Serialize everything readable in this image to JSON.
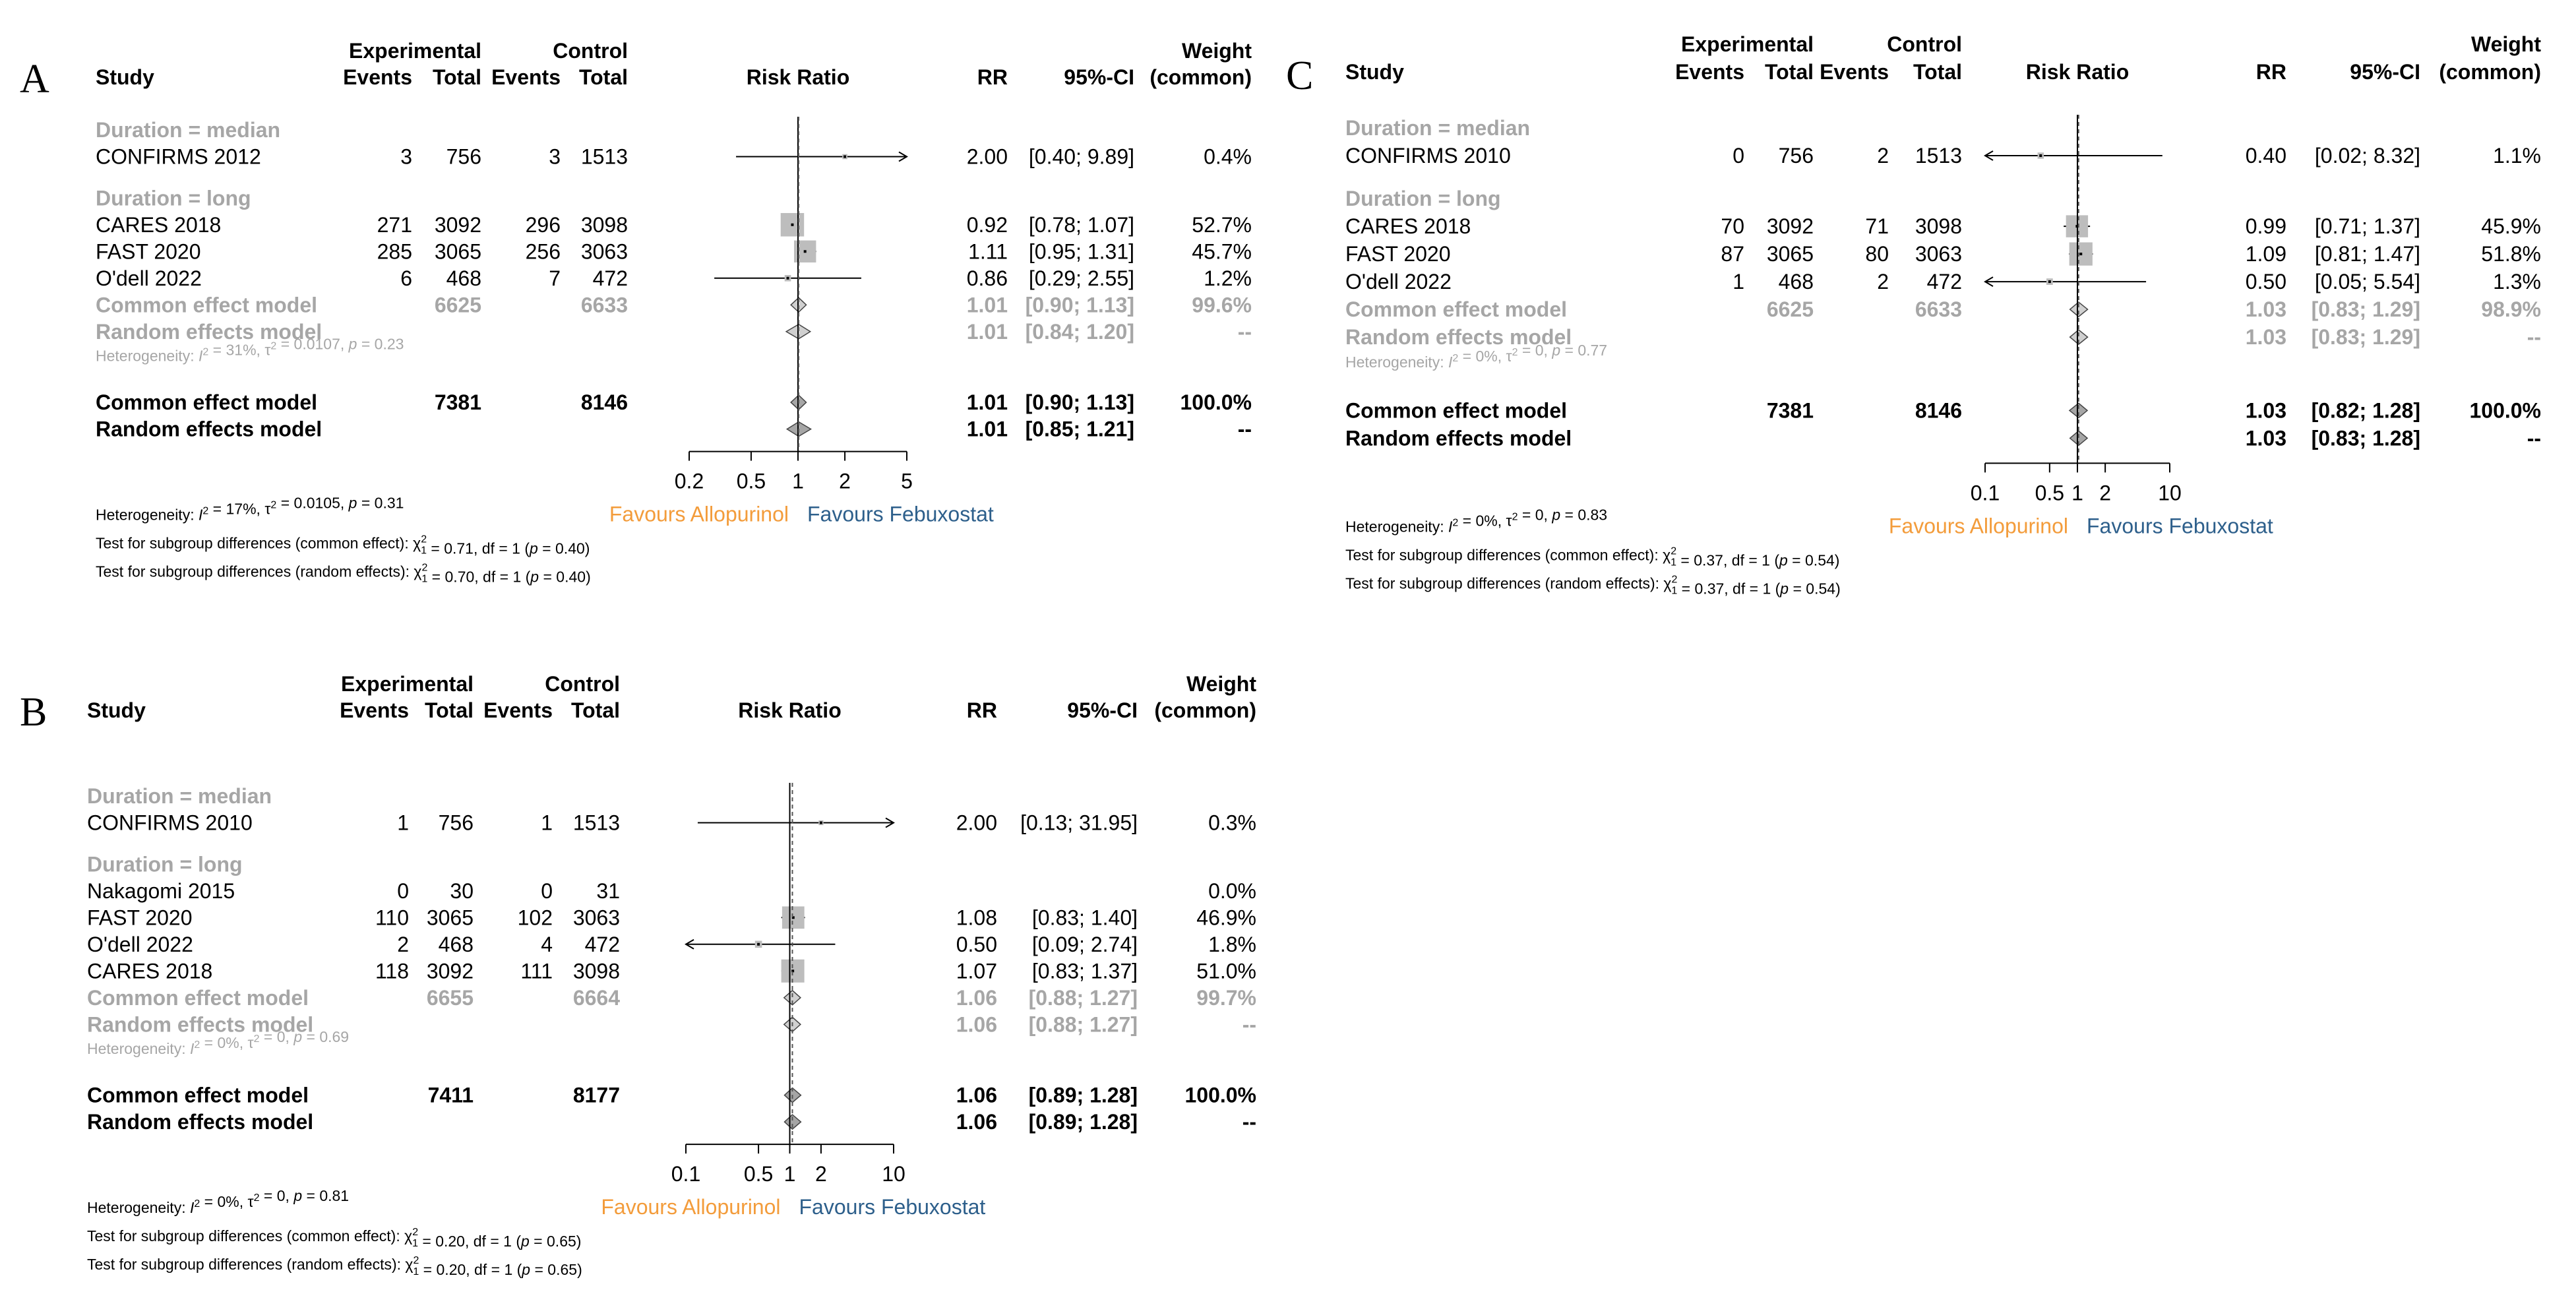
{
  "header_labels": {
    "study": "Study",
    "experimental": "Experimental",
    "control": "Control",
    "events": "Events",
    "total": "Total",
    "risk_ratio": "Risk Ratio",
    "rr": "RR",
    "ci": "95%-CI",
    "weight": "Weight",
    "weight_sub": "(common)"
  },
  "legend": {
    "left": "Favours Allopurinol",
    "right": "Favours Febuxostat",
    "left_color": "#f39c3b",
    "right_color": "#2d5f8b"
  },
  "chart_data": [
    {
      "type": "forest",
      "panel": "A",
      "scale": "log",
      "xticks": [
        0.2,
        0.5,
        1,
        2,
        5
      ],
      "xlim": [
        0.2,
        5
      ],
      "groups": [
        {
          "label": "Duration = median",
          "studies": [
            {
              "study": "CONFIRMS 2012",
              "e_events": "3",
              "e_total": "756",
              "c_events": "3",
              "c_total": "1513",
              "rr": 2.0,
              "lo": 0.4,
              "hi": 9.89,
              "rr_text": "2.00",
              "ci_text": "[0.40; 9.89]",
              "weight": "0.4%"
            }
          ],
          "common": null,
          "random": null,
          "heterogeneity": ""
        },
        {
          "label": "Duration = long",
          "studies": [
            {
              "study": "CARES 2018",
              "e_events": "271",
              "e_total": "3092",
              "c_events": "296",
              "c_total": "3098",
              "rr": 0.92,
              "lo": 0.78,
              "hi": 1.07,
              "rr_text": "0.92",
              "ci_text": "[0.78; 1.07]",
              "weight": "52.7%"
            },
            {
              "study": "FAST 2020",
              "e_events": "285",
              "e_total": "3065",
              "c_events": "256",
              "c_total": "3063",
              "rr": 1.11,
              "lo": 0.95,
              "hi": 1.31,
              "rr_text": "1.11",
              "ci_text": "[0.95; 1.31]",
              "weight": "45.7%"
            },
            {
              "study": "O'dell 2022",
              "e_events": "6",
              "e_total": "468",
              "c_events": "7",
              "c_total": "472",
              "rr": 0.86,
              "lo": 0.29,
              "hi": 2.55,
              "rr_text": "0.86",
              "ci_text": "[0.29; 2.55]",
              "weight": "1.2%"
            }
          ],
          "common": {
            "label": "Common effect model",
            "e_total": "6625",
            "c_total": "6633",
            "rr": 1.01,
            "lo": 0.9,
            "hi": 1.13,
            "rr_text": "1.01",
            "ci_text": "[0.90; 1.13]",
            "weight": "99.6%"
          },
          "random": {
            "label": "Random effects model",
            "rr": 1.01,
            "lo": 0.84,
            "hi": 1.2,
            "rr_text": "1.01",
            "ci_text": "[0.84; 1.20]",
            "weight": "--"
          },
          "heterogeneity": "Heterogeneity: I² = 31%, τ² = 0.0107, p = 0.23"
        }
      ],
      "overall_common": {
        "label": "Common effect model",
        "e_total": "7381",
        "c_total": "8146",
        "rr": 1.01,
        "lo": 0.9,
        "hi": 1.13,
        "rr_text": "1.01",
        "ci_text": "[0.90; 1.13]",
        "weight": "100.0%"
      },
      "overall_random": {
        "label": "Random effects model",
        "rr": 1.01,
        "lo": 0.85,
        "hi": 1.21,
        "rr_text": "1.01",
        "ci_text": "[0.85; 1.21]",
        "weight": "--"
      },
      "footer": [
        "Heterogeneity: I² = 17%, τ² = 0.0105, p = 0.31",
        "Test for subgroup differences (common effect): χ²₁ = 0.71, df = 1 (p = 0.40)",
        "Test for subgroup differences (random effects): χ²₁ = 0.70, df = 1 (p = 0.40)"
      ]
    },
    {
      "type": "forest",
      "panel": "B",
      "scale": "log",
      "xticks": [
        0.1,
        0.5,
        1,
        2,
        10
      ],
      "xlim": [
        0.1,
        10
      ],
      "groups": [
        {
          "label": "Duration = median",
          "studies": [
            {
              "study": "CONFIRMS 2010",
              "e_events": "1",
              "e_total": "756",
              "c_events": "1",
              "c_total": "1513",
              "rr": 2.0,
              "lo": 0.13,
              "hi": 31.95,
              "rr_text": "2.00",
              "ci_text": "[0.13; 31.95]",
              "weight": "0.3%"
            }
          ],
          "common": null,
          "random": null,
          "heterogeneity": ""
        },
        {
          "label": "Duration = long",
          "studies": [
            {
              "study": "Nakagomi 2015",
              "e_events": "0",
              "e_total": "30",
              "c_events": "0",
              "c_total": "31",
              "rr": null,
              "lo": null,
              "hi": null,
              "rr_text": "",
              "ci_text": "",
              "weight": "0.0%"
            },
            {
              "study": "FAST 2020",
              "e_events": "110",
              "e_total": "3065",
              "c_events": "102",
              "c_total": "3063",
              "rr": 1.08,
              "lo": 0.83,
              "hi": 1.4,
              "rr_text": "1.08",
              "ci_text": "[0.83; 1.40]",
              "weight": "46.9%"
            },
            {
              "study": "O'dell 2022",
              "e_events": "2",
              "e_total": "468",
              "c_events": "4",
              "c_total": "472",
              "rr": 0.5,
              "lo": 0.09,
              "hi": 2.74,
              "rr_text": "0.50",
              "ci_text": "[0.09; 2.74]",
              "weight": "1.8%"
            },
            {
              "study": "CARES 2018",
              "e_events": "118",
              "e_total": "3092",
              "c_events": "111",
              "c_total": "3098",
              "rr": 1.07,
              "lo": 0.83,
              "hi": 1.37,
              "rr_text": "1.07",
              "ci_text": "[0.83; 1.37]",
              "weight": "51.0%"
            }
          ],
          "common": {
            "label": "Common effect model",
            "e_total": "6655",
            "c_total": "6664",
            "rr": 1.06,
            "lo": 0.88,
            "hi": 1.27,
            "rr_text": "1.06",
            "ci_text": "[0.88; 1.27]",
            "weight": "99.7%"
          },
          "random": {
            "label": "Random effects model",
            "rr": 1.06,
            "lo": 0.88,
            "hi": 1.27,
            "rr_text": "1.06",
            "ci_text": "[0.88; 1.27]",
            "weight": "--"
          },
          "heterogeneity": "Heterogeneity: I² = 0%, τ² = 0, p = 0.69"
        }
      ],
      "overall_common": {
        "label": "Common effect model",
        "e_total": "7411",
        "c_total": "8177",
        "rr": 1.06,
        "lo": 0.89,
        "hi": 1.28,
        "rr_text": "1.06",
        "ci_text": "[0.89; 1.28]",
        "weight": "100.0%"
      },
      "overall_random": {
        "label": "Random effects model",
        "rr": 1.06,
        "lo": 0.89,
        "hi": 1.28,
        "rr_text": "1.06",
        "ci_text": "[0.89; 1.28]",
        "weight": "--"
      },
      "footer": [
        "Heterogeneity: I² = 0%, τ² = 0, p = 0.81",
        "Test for subgroup differences (common effect): χ²₁ = 0.20, df = 1 (p = 0.65)",
        "Test for subgroup differences (random effects): χ²₁ = 0.20, df = 1 (p = 0.65)"
      ]
    },
    {
      "type": "forest",
      "panel": "C",
      "scale": "log",
      "xticks": [
        0.1,
        0.5,
        1,
        2,
        10
      ],
      "xlim": [
        0.1,
        10
      ],
      "groups": [
        {
          "label": "Duration = median",
          "studies": [
            {
              "study": "CONFIRMS 2010",
              "e_events": "0",
              "e_total": "756",
              "c_events": "2",
              "c_total": "1513",
              "rr": 0.4,
              "lo": 0.02,
              "hi": 8.32,
              "rr_text": "0.40",
              "ci_text": "[0.02; 8.32]",
              "weight": "1.1%"
            }
          ],
          "common": null,
          "random": null,
          "heterogeneity": ""
        },
        {
          "label": "Duration = long",
          "studies": [
            {
              "study": "CARES 2018",
              "e_events": "70",
              "e_total": "3092",
              "c_events": "71",
              "c_total": "3098",
              "rr": 0.99,
              "lo": 0.71,
              "hi": 1.37,
              "rr_text": "0.99",
              "ci_text": "[0.71; 1.37]",
              "weight": "45.9%"
            },
            {
              "study": "FAST 2020",
              "e_events": "87",
              "e_total": "3065",
              "c_events": "80",
              "c_total": "3063",
              "rr": 1.09,
              "lo": 0.81,
              "hi": 1.47,
              "rr_text": "1.09",
              "ci_text": "[0.81; 1.47]",
              "weight": "51.8%"
            },
            {
              "study": "O'dell 2022",
              "e_events": "1",
              "e_total": "468",
              "c_events": "2",
              "c_total": "472",
              "rr": 0.5,
              "lo": 0.05,
              "hi": 5.54,
              "rr_text": "0.50",
              "ci_text": "[0.05; 5.54]",
              "weight": "1.3%"
            }
          ],
          "common": {
            "label": "Common effect model",
            "e_total": "6625",
            "c_total": "6633",
            "rr": 1.03,
            "lo": 0.83,
            "hi": 1.29,
            "rr_text": "1.03",
            "ci_text": "[0.83; 1.29]",
            "weight": "98.9%"
          },
          "random": {
            "label": "Random effects model",
            "rr": 1.03,
            "lo": 0.83,
            "hi": 1.29,
            "rr_text": "1.03",
            "ci_text": "[0.83; 1.29]",
            "weight": "--"
          },
          "heterogeneity": "Heterogeneity: I² = 0%, τ² = 0, p = 0.77"
        }
      ],
      "overall_common": {
        "label": "Common effect model",
        "e_total": "7381",
        "c_total": "8146",
        "rr": 1.03,
        "lo": 0.82,
        "hi": 1.28,
        "rr_text": "1.03",
        "ci_text": "[0.82; 1.28]",
        "weight": "100.0%"
      },
      "overall_random": {
        "label": "Random effects model",
        "rr": 1.03,
        "lo": 0.83,
        "hi": 1.28,
        "rr_text": "1.03",
        "ci_text": "[0.83; 1.28]",
        "weight": "--"
      },
      "footer": [
        "Heterogeneity: I² = 0%, τ² = 0, p = 0.83",
        "Test for subgroup differences (common effect): χ²₁ = 0.37, df = 1 (p = 0.54)",
        "Test for subgroup differences (random effects): χ²₁ = 0.37, df = 1 (p = 0.54)"
      ]
    }
  ]
}
